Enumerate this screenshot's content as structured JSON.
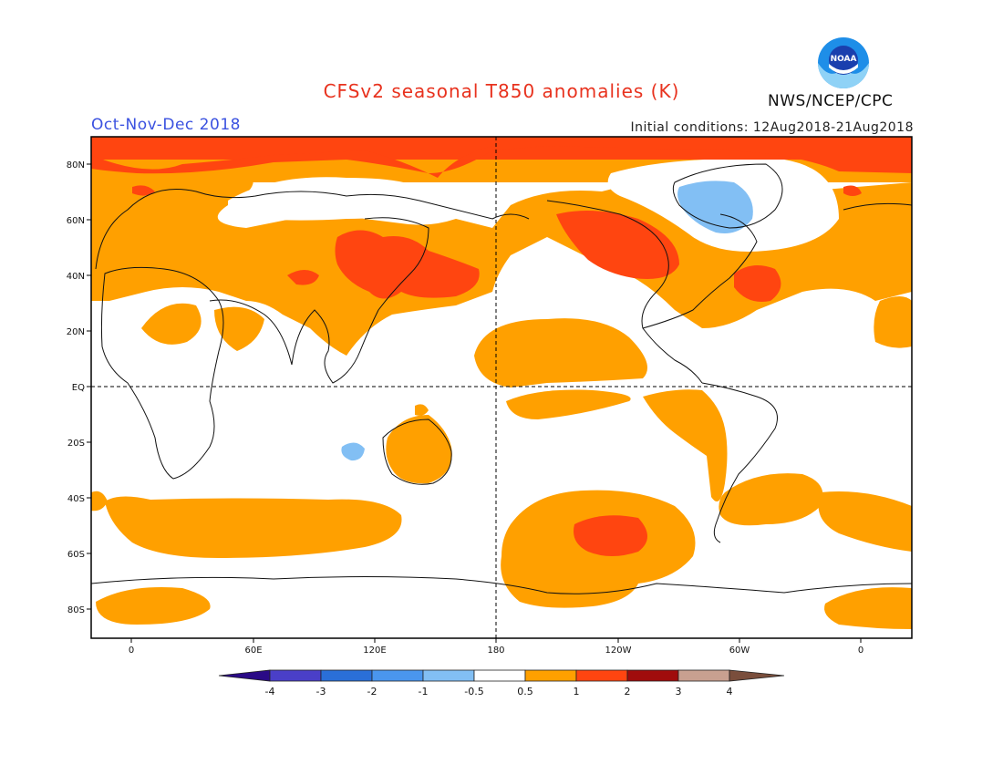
{
  "header": {
    "title": "CFSv2 seasonal T850 anomalies (K)",
    "season": "Oct-Nov-Dec 2018",
    "initial_conditions": "Initial conditions: 12Aug2018-21Aug2018",
    "agency": "NWS/NCEP/CPC",
    "logo_text": "NOAA"
  },
  "axes": {
    "lat_labels": [
      "80N",
      "60N",
      "40N",
      "20N",
      "EQ",
      "20S",
      "40S",
      "60S",
      "80S"
    ],
    "lon_labels": [
      "0",
      "60E",
      "120E",
      "180",
      "120W",
      "60W",
      "0"
    ]
  },
  "legend": {
    "ticks": [
      "-4",
      "-3",
      "-2",
      "-1",
      "-0.5",
      "0.5",
      "1",
      "2",
      "3",
      "4"
    ],
    "colors": [
      "#2a0a86",
      "#4a3fc8",
      "#2a6fd8",
      "#4a96ee",
      "#82bff4",
      "#ffffff",
      "#ffa000",
      "#ff4510",
      "#a00c0c",
      "#c8a090",
      "#7a4e3c"
    ]
  },
  "colors": {
    "warm_1": "#ffa000",
    "warm_2": "#ff4510",
    "cool_1": "#82bff4",
    "title": "#e8321e",
    "season": "#3b52e0"
  }
}
